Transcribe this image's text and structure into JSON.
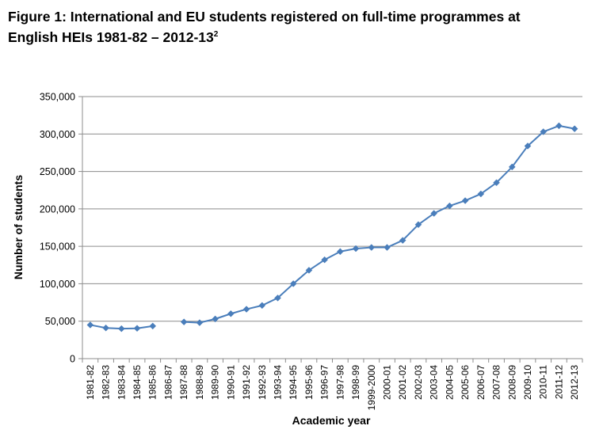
{
  "title": {
    "line1": "Figure 1: International and EU students registered on full-time programmes at",
    "line2": "English HEIs 1981-82 – 2012-13",
    "superscript": "2"
  },
  "chart_data": {
    "type": "line",
    "xlabel": "Academic year",
    "ylabel": "Number of students",
    "ylim": [
      0,
      350000
    ],
    "yticks": [
      0,
      50000,
      100000,
      150000,
      200000,
      250000,
      300000,
      350000
    ],
    "ytick_labels": [
      "0",
      "50,000",
      "100,000",
      "150,000",
      "200,000",
      "250,000",
      "300,000",
      "350,000"
    ],
    "grid": "horizontal",
    "legend": "none",
    "color": "#4a7ebb",
    "categories": [
      "1981-82",
      "1982-83",
      "1983-84",
      "1984-85",
      "1985-86",
      "1986-87",
      "1987-88",
      "1988-89",
      "1989-90",
      "1990-91",
      "1991-92",
      "1992-93",
      "1993-94",
      "1994-95",
      "1995-96",
      "1996-97",
      "1997-98",
      "1998-99",
      "1999-2000",
      "2000-01",
      "2001-02",
      "2002-03",
      "2003-04",
      "2004-05",
      "2005-06",
      "2006-07",
      "2007-08",
      "2008-09",
      "2009-10",
      "2010-11",
      "2011-12",
      "2012-13"
    ],
    "values": [
      45000,
      41000,
      40000,
      40500,
      43500,
      null,
      49000,
      48000,
      53000,
      60000,
      66000,
      71000,
      81000,
      100000,
      118000,
      132000,
      143000,
      147000,
      148500,
      148500,
      158000,
      179000,
      194000,
      204000,
      211000,
      220000,
      235000,
      256000,
      284000,
      303000,
      311000,
      307000
    ]
  }
}
